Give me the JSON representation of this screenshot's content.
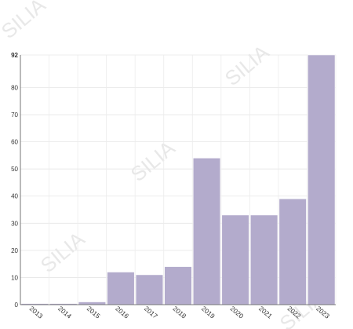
{
  "watermark": "SILIA",
  "chart_data": {
    "type": "bar",
    "categories": [
      "2013",
      "2014",
      "2015",
      "2016",
      "2017",
      "2018",
      "2019",
      "2020",
      "2021",
      "2022",
      "2023"
    ],
    "values": [
      0.4,
      0.4,
      1,
      12,
      11,
      14,
      54,
      33,
      33,
      39,
      92
    ],
    "y_ticks": [
      0,
      10,
      20,
      30,
      40,
      50,
      60,
      70,
      80,
      92
    ],
    "ylim": [
      0,
      92
    ],
    "grid": true,
    "bar_color": "#b3abcc",
    "bar_edge_color": "#ffffff",
    "title": "",
    "xlabel": "",
    "ylabel": ""
  }
}
